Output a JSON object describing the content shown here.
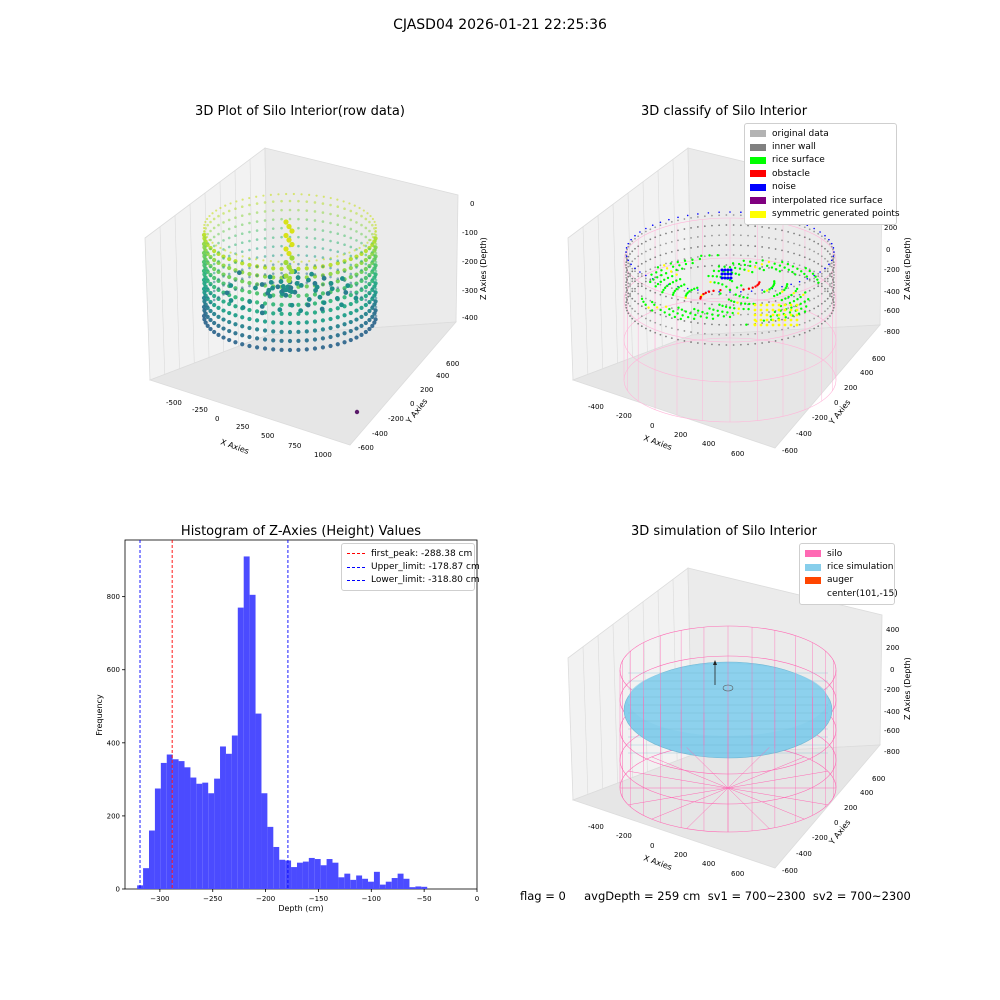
{
  "suptitle": "CJASD04 2026-01-21 22:25:36",
  "panels": {
    "raw": {
      "title": "3D Plot of Silo Interior(row data)",
      "xlabel": "X Axies",
      "ylabel": "Y Axies",
      "zlabel": "Z Axies (Depth)",
      "xticks": [
        "-500",
        "-250",
        "0",
        "250",
        "500",
        "750",
        "1000"
      ],
      "yticks": [
        "600",
        "400",
        "200",
        "0",
        "-200",
        "-400",
        "-600"
      ],
      "zticks": [
        "0",
        "-100",
        "-200",
        "-300",
        "-400"
      ]
    },
    "classify": {
      "title": "3D classify of Silo Interior",
      "xlabel": "X Axies",
      "ylabel": "Y Axies",
      "zlabel": "Z Axies (Depth)",
      "xticks": [
        "-400",
        "-200",
        "0",
        "200",
        "400",
        "600"
      ],
      "yticks": [
        "600",
        "400",
        "200",
        "0",
        "-200",
        "-400",
        "-600"
      ],
      "zticks": [
        "400",
        "200",
        "0",
        "-200",
        "-400",
        "-600",
        "-800"
      ],
      "legend": [
        {
          "label": "original data",
          "color": "#b3b3b3"
        },
        {
          "label": "inner wall",
          "color": "#808080"
        },
        {
          "label": "rice surface",
          "color": "#00ff00"
        },
        {
          "label": "obstacle",
          "color": "#ff0000"
        },
        {
          "label": "noise",
          "color": "#0000ff"
        },
        {
          "label": "interpolated rice surface",
          "color": "#800080"
        },
        {
          "label": "symmetric generated points",
          "color": "#ffff00"
        }
      ]
    },
    "simulation": {
      "title": "3D simulation of Silo Interior",
      "xlabel": "X Axies",
      "ylabel": "Y Axies",
      "zlabel": "Z Axies (Depth)",
      "xticks": [
        "-400",
        "-200",
        "0",
        "200",
        "400",
        "600"
      ],
      "yticks": [
        "600",
        "400",
        "200",
        "0",
        "-200",
        "-400",
        "-600"
      ],
      "zticks": [
        "400",
        "200",
        "0",
        "-200",
        "-400",
        "-600",
        "-800"
      ],
      "legend": [
        {
          "label": "silo",
          "color": "#ff69b4"
        },
        {
          "label": "rice simulation",
          "color": "#87ceeb"
        },
        {
          "label": "auger",
          "color": "#ff4500"
        },
        {
          "label": "center(101,-15)",
          "color": ""
        }
      ]
    }
  },
  "footer": {
    "text": "flag = 0     avgDepth = 259 cm  sv1 = 700~2300  sv2 = 700~2300"
  },
  "chart_data": {
    "type": "bar",
    "title": "Histogram of Z-Axies (Height) Values",
    "xlabel": "Depth (cm)",
    "ylabel": "Frequency",
    "bar_color": "#4b4bff",
    "xlim": [
      -333,
      0
    ],
    "ylim": [
      0,
      955
    ],
    "xticks": [
      -300,
      -250,
      -200,
      -150,
      -100,
      -50,
      0
    ],
    "yticks": [
      0,
      200,
      400,
      600,
      800
    ],
    "bin_start": -321.5,
    "bin_width": 5.6,
    "values": [
      10,
      57,
      160,
      275,
      345,
      368,
      355,
      350,
      333,
      305,
      288,
      291,
      262,
      302,
      390,
      370,
      420,
      770,
      910,
      805,
      480,
      262,
      170,
      115,
      80,
      78,
      60,
      72,
      75,
      85,
      82,
      65,
      82,
      72,
      32,
      42,
      25,
      37,
      28,
      20,
      47,
      12,
      20,
      30,
      42,
      28,
      5,
      7,
      6
    ],
    "vlines": [
      {
        "label": "first_peak: -288.38 cm",
        "x": -288.38,
        "color": "#ff0000"
      },
      {
        "label": "Upper_limit: -178.87 cm",
        "x": -178.87,
        "color": "#0000ff"
      },
      {
        "label": "Lower_limit: -318.80 cm",
        "x": -318.8,
        "color": "#0000ff"
      }
    ]
  }
}
